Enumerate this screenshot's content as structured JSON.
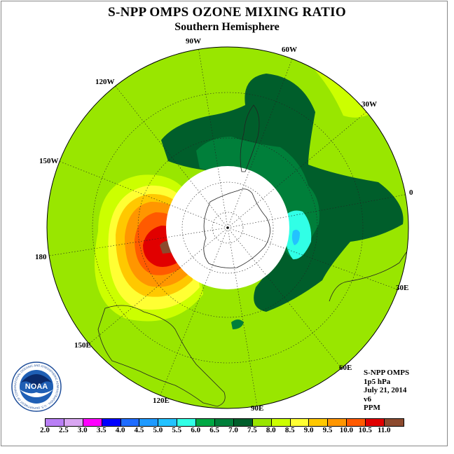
{
  "title": "S-NPP OMPS OZONE MIXING RATIO",
  "subtitle": "Southern Hemisphere",
  "longitude_labels": {
    "lon_90w": "90W",
    "lon_60w": "60W",
    "lon_120w": "120W",
    "lon_30w": "30W",
    "lon_150w": "150W",
    "lon_0": "0",
    "lon_180": "180",
    "lon_30e": "30E",
    "lon_150e": "150E",
    "lon_60e": "60E",
    "lon_120e": "120E",
    "lon_90e": "90E"
  },
  "info": {
    "line1": "S-NPP OMPS",
    "line2": "1p5 hPa",
    "line3": "July 21, 2014",
    "line4": "v6",
    "line5": "PPM"
  },
  "logo": {
    "text": "NOAA",
    "ring_text": "NATIONAL OCEANIC AND ATMOSPHERIC ADMINISTRATION · U.S. DEPARTMENT OF COMMERCE"
  },
  "colorbar": {
    "labels": [
      "2.0",
      "2.5",
      "3.0",
      "3.5",
      "4.0",
      "4.5",
      "5.0",
      "5.5",
      "6.0",
      "6.5",
      "7.0",
      "7.5",
      "8.0",
      "8.5",
      "9.0",
      "9.5",
      "10.0",
      "10.5",
      "11.0"
    ],
    "colors": [
      "#b97ff5",
      "#d9a6f2",
      "#ff00ff",
      "#0000ff",
      "#1e6cff",
      "#1f9aff",
      "#23c2ff",
      "#31ffe6",
      "#00a844",
      "#007f3a",
      "#005e2b",
      "#99e600",
      "#ccff00",
      "#ffff33",
      "#ffc800",
      "#ff9600",
      "#ff5a00",
      "#e10000",
      "#8c4a2e"
    ]
  },
  "palette": {
    "background_green": "#99e600",
    "pole_mask": "#ffffff"
  }
}
